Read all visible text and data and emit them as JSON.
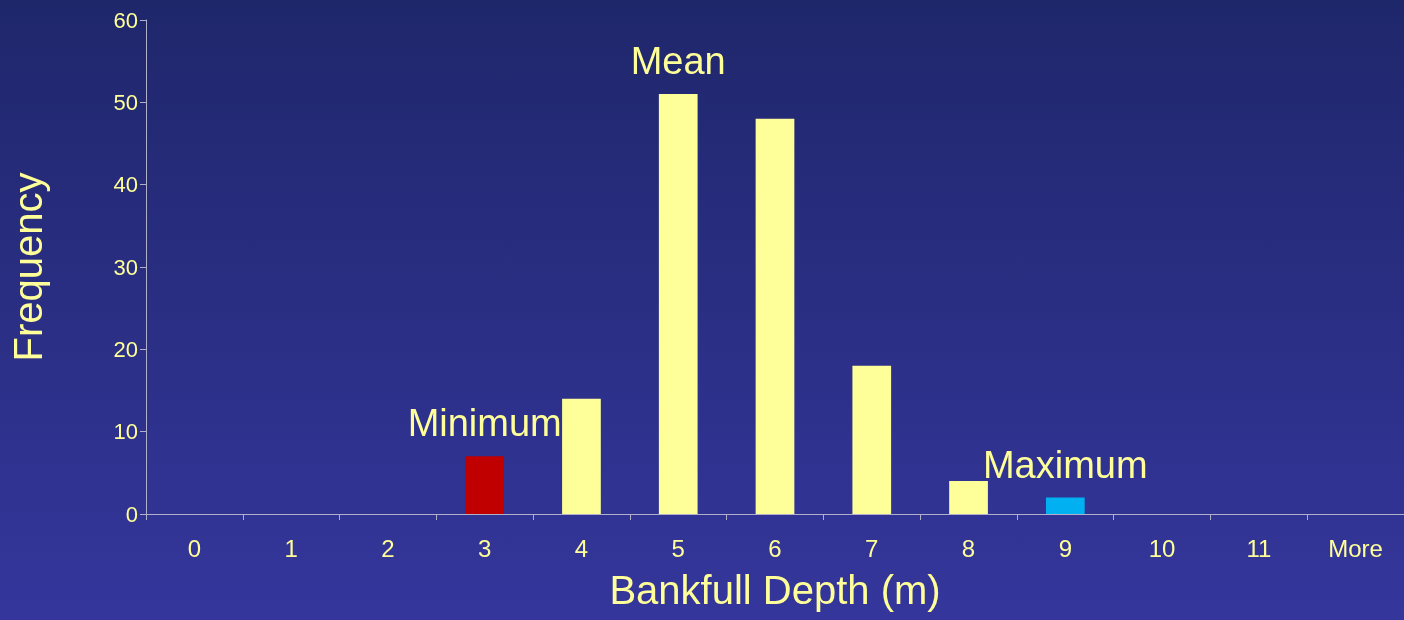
{
  "chart_data": {
    "type": "bar",
    "xlabel": "Bankfull Depth (m)",
    "ylabel": "Frequency",
    "categories": [
      "0",
      "1",
      "2",
      "3",
      "4",
      "5",
      "6",
      "7",
      "8",
      "9",
      "10",
      "11",
      "More"
    ],
    "values": [
      0,
      0,
      0,
      7,
      14,
      51,
      48,
      18,
      4,
      2,
      0,
      0,
      0
    ],
    "colors": [
      "#ffff99",
      "#ffff99",
      "#ffff99",
      "#c00000",
      "#ffff99",
      "#ffff99",
      "#ffff99",
      "#ffff99",
      "#ffff99",
      "#00b0f0",
      "#ffff99",
      "#ffff99",
      "#ffff99"
    ],
    "ylim": [
      0,
      60
    ],
    "yticks": [
      0,
      10,
      20,
      30,
      40,
      50,
      60
    ],
    "annotations": [
      {
        "text": "Minimum",
        "x": "3",
        "y": 7
      },
      {
        "text": "Mean",
        "x": "5",
        "y": 51
      },
      {
        "text": "Maximum",
        "x": "9",
        "y": 2
      }
    ]
  }
}
